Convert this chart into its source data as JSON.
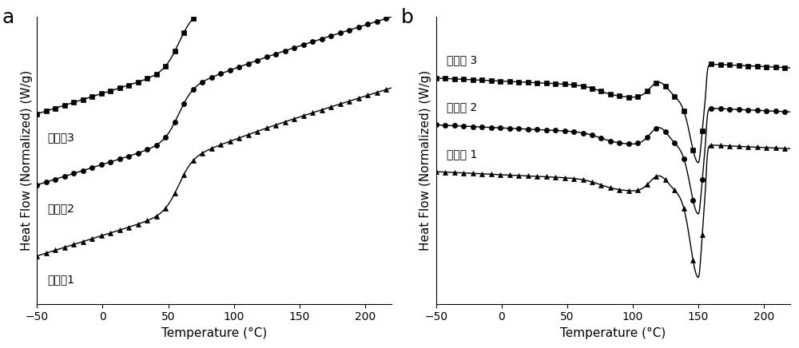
{
  "title_a": "a",
  "title_b": "b",
  "xlabel": "Temperature (°C)",
  "ylabel": "Heat Flow (Normalized) (W/g)",
  "xmin": -50,
  "xmax": 220,
  "labels_a": [
    "实施例1",
    "实施例2",
    "实施例3"
  ],
  "labels_b": [
    "实施例 1",
    "实施例 2",
    "实施例 3"
  ],
  "markers": [
    "^",
    "o",
    "s"
  ],
  "color": "#000000",
  "background": "#ffffff",
  "tick_fontsize": 10,
  "label_fontsize": 11,
  "panel_label_fontsize": 18
}
